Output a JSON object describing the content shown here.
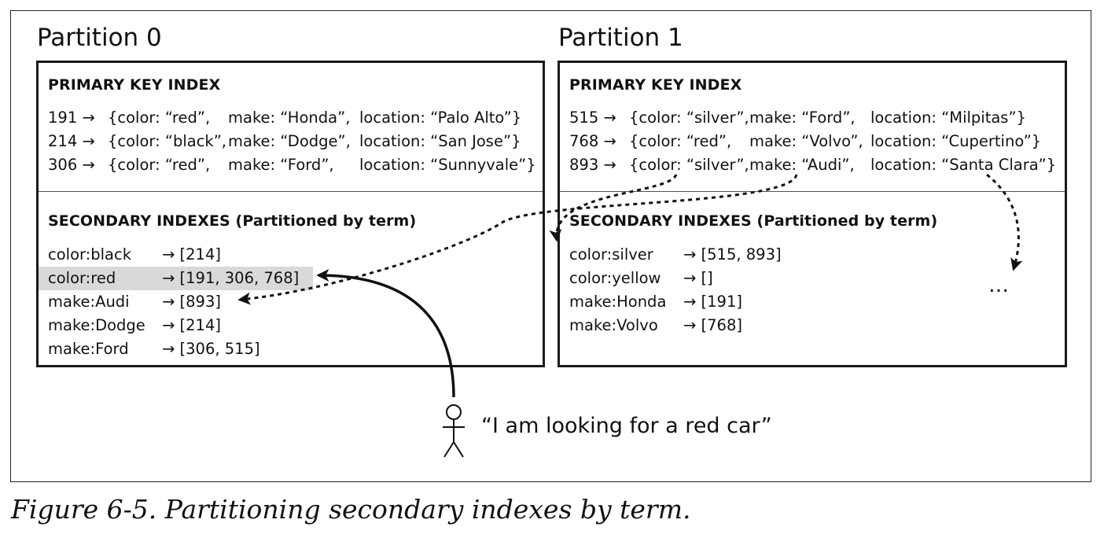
{
  "partitions": [
    {
      "title": "Partition 0",
      "primary_title": "PRIMARY KEY INDEX",
      "primary_rows": [
        {
          "key": "191 →",
          "color": "{color: “red”,",
          "make": "make: “Honda”,",
          "location": "location: “Palo Alto”}"
        },
        {
          "key": "214 →",
          "color": "{color: “black”,",
          "make": "make: “Dodge”,",
          "location": "location: “San Jose”}"
        },
        {
          "key": "306 →",
          "color": "{color: “red”,",
          "make": "make: “Ford”,",
          "location": "location: “Sunnyvale”}"
        }
      ],
      "secondary_title": "SECONDARY INDEXES (Partitioned by term)",
      "secondary_rows": [
        {
          "term": "color:black",
          "postings": "→ [214]"
        },
        {
          "term": "color:red",
          "postings": "→ [191, 306, 768]"
        },
        {
          "term": "make:Audi",
          "postings": "→ [893]"
        },
        {
          "term": "make:Dodge",
          "postings": "→ [214]"
        },
        {
          "term": "make:Ford",
          "postings": "→ [306, 515]"
        }
      ]
    },
    {
      "title": "Partition 1",
      "primary_title": "PRIMARY KEY INDEX",
      "primary_rows": [
        {
          "key": "515 →",
          "color": "{color: “silver”,",
          "make": "make: “Ford”,",
          "location": "location: “Milpitas”}"
        },
        {
          "key": "768 →",
          "color": "{color: “red”,",
          "make": "make: “Volvo”,",
          "location": "location: “Cupertino”}"
        },
        {
          "key": "893 →",
          "color": "{color: “silver”,",
          "make": "make: “Audi”,",
          "location": "location: “Santa Clara”}"
        }
      ],
      "secondary_title": "SECONDARY INDEXES (Partitioned by term)",
      "secondary_rows": [
        {
          "term": "color:silver",
          "postings": "→ [515, 893]"
        },
        {
          "term": "color:yellow",
          "postings": "→ []"
        },
        {
          "term": "make:Honda",
          "postings": "→ [191]"
        },
        {
          "term": "make:Volvo",
          "postings": "→ [768]"
        }
      ],
      "ellipsis": "…"
    }
  ],
  "user_query": "“I am looking for a red car”",
  "caption": "Figure 6-5. Partitioning secondary indexes by term.",
  "colors": {
    "highlight": "#d9d9d9",
    "line": "#111111"
  }
}
